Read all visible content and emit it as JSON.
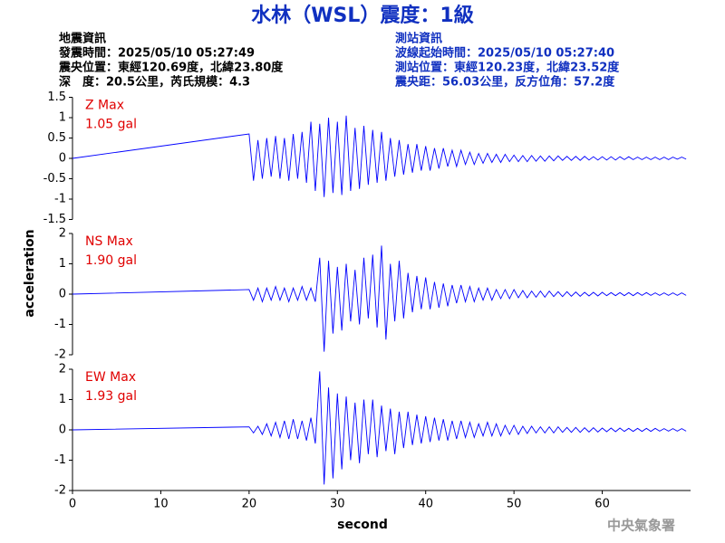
{
  "header": {
    "title": "水林（WSL）震度：1級",
    "earthquake_info": [
      "地震資訊",
      "發震時間：2025/05/10 05:27:49",
      "震央位置：東經120.69度，北緯23.80度",
      "深　度：20.5公里，芮氏規模：4.3"
    ],
    "station_info": [
      "測站資訊",
      "波線起始時間：2025/05/10 05:27:40",
      "測站位置：東經120.23度，北緯23.52度",
      "震央距：56.03公里，反方位角：57.2度"
    ]
  },
  "footer": {
    "watermark": "中央氣象署"
  },
  "chart_data": [
    {
      "type": "line",
      "annotations": [
        "Z Max",
        "1.05 gal"
      ],
      "color": "#0000ff",
      "xlim": [
        0,
        70
      ],
      "ylim": [
        -1.5,
        1.5
      ],
      "yticks": [
        -1.5,
        -1,
        -0.5,
        0,
        0.5,
        1,
        1.5
      ],
      "x": [
        0,
        20,
        20.5,
        21,
        21.5,
        22,
        22.5,
        23,
        23.5,
        24,
        24.5,
        25,
        25.5,
        26,
        26.5,
        27,
        27.5,
        28,
        28.5,
        29,
        29.5,
        30,
        30.5,
        31,
        31.5,
        32,
        32.5,
        33,
        33.5,
        34,
        34.5,
        35,
        35.5,
        36,
        36.5,
        37,
        37.5,
        38,
        38.5,
        39,
        39.5,
        40,
        40.5,
        41,
        41.5,
        42,
        42.5,
        43,
        43.5,
        44,
        44.5,
        45,
        45.5,
        46,
        46.5,
        47,
        47.5,
        48,
        48.5,
        49,
        49.5,
        50,
        50.5,
        51,
        51.5,
        52,
        52.5,
        53,
        53.5,
        54,
        54.5,
        55,
        55.5,
        56,
        56.5,
        57,
        57.5,
        58,
        58.5,
        59,
        59.5,
        60,
        60.5,
        61,
        61.5,
        62,
        62.5,
        63,
        63.5,
        64,
        64.5,
        65,
        65.5,
        66,
        66.5,
        67,
        67.5,
        68,
        68.5,
        69,
        69.5
      ],
      "values": [
        0,
        0.6,
        -0.55,
        0.45,
        -0.5,
        0.5,
        -0.45,
        0.55,
        -0.5,
        0.5,
        -0.55,
        0.6,
        -0.5,
        0.65,
        -0.6,
        0.9,
        -0.8,
        0.85,
        -0.95,
        1.0,
        -0.85,
        0.9,
        -0.9,
        1.05,
        -0.8,
        0.75,
        -0.75,
        0.8,
        -0.65,
        0.7,
        -0.6,
        0.65,
        -0.55,
        0.5,
        -0.45,
        0.45,
        -0.4,
        0.35,
        -0.35,
        0.35,
        -0.3,
        0.3,
        -0.3,
        0.25,
        -0.25,
        0.25,
        -0.2,
        0.2,
        -0.2,
        0.2,
        -0.15,
        0.15,
        -0.15,
        0.12,
        -0.12,
        0.12,
        -0.1,
        0.1,
        -0.1,
        0.1,
        -0.08,
        0.08,
        -0.08,
        0.07,
        -0.08,
        0.07,
        -0.07,
        0.06,
        -0.07,
        0.06,
        -0.06,
        0.06,
        -0.05,
        0.05,
        -0.05,
        0.05,
        -0.05,
        0.05,
        -0.04,
        0.04,
        -0.04,
        0.04,
        -0.04,
        0.04,
        -0.04,
        0.04,
        -0.03,
        0.04,
        -0.03,
        0.03,
        -0.03,
        0.03,
        -0.03,
        0.03,
        -0.03,
        0.03,
        -0.03,
        0.03,
        -0.02,
        0.03,
        -0.02
      ]
    },
    {
      "type": "line",
      "annotations": [
        "NS Max",
        "1.90 gal"
      ],
      "color": "#0000ff",
      "ylabel": "acceleration",
      "xlim": [
        0,
        70
      ],
      "ylim": [
        -2,
        2
      ],
      "yticks": [
        -2,
        -1,
        0,
        1,
        2
      ],
      "x": [
        0,
        20,
        20.5,
        21,
        21.5,
        22,
        22.5,
        23,
        23.5,
        24,
        24.5,
        25,
        25.5,
        26,
        26.5,
        27,
        27.5,
        28,
        28.5,
        29,
        29.5,
        30,
        30.5,
        31,
        31.5,
        32,
        32.5,
        33,
        33.5,
        34,
        34.5,
        35,
        35.5,
        36,
        36.5,
        37,
        37.5,
        38,
        38.5,
        39,
        39.5,
        40,
        40.5,
        41,
        41.5,
        42,
        42.5,
        43,
        43.5,
        44,
        44.5,
        45,
        45.5,
        46,
        46.5,
        47,
        47.5,
        48,
        48.5,
        49,
        49.5,
        50,
        50.5,
        51,
        51.5,
        52,
        52.5,
        53,
        53.5,
        54,
        54.5,
        55,
        55.5,
        56,
        56.5,
        57,
        57.5,
        58,
        58.5,
        59,
        59.5,
        60,
        60.5,
        61,
        61.5,
        62,
        62.5,
        63,
        63.5,
        64,
        64.5,
        65,
        65.5,
        66,
        66.5,
        67,
        67.5,
        68,
        68.5,
        69,
        69.5
      ],
      "values": [
        0,
        0.15,
        -0.2,
        0.2,
        -0.25,
        0.2,
        -0.2,
        0.25,
        -0.2,
        0.2,
        -0.25,
        0.2,
        -0.2,
        0.25,
        -0.2,
        0.2,
        -0.25,
        1.2,
        -1.9,
        1.1,
        -1.3,
        0.9,
        -1.2,
        1.0,
        -0.9,
        0.8,
        -1.0,
        1.2,
        -0.8,
        1.3,
        -1.1,
        1.6,
        -1.5,
        1.0,
        -0.9,
        1.1,
        -0.8,
        0.7,
        -0.6,
        0.6,
        -0.5,
        0.55,
        -0.5,
        0.4,
        -0.45,
        0.35,
        -0.4,
        0.3,
        -0.3,
        0.3,
        -0.25,
        0.25,
        -0.25,
        0.2,
        -0.2,
        0.2,
        -0.2,
        0.15,
        -0.15,
        0.15,
        -0.15,
        0.15,
        -0.12,
        0.12,
        -0.12,
        0.1,
        -0.1,
        0.1,
        -0.1,
        0.1,
        -0.08,
        0.08,
        -0.08,
        0.08,
        -0.07,
        0.07,
        -0.07,
        0.06,
        -0.06,
        0.06,
        -0.06,
        0.06,
        -0.05,
        0.05,
        -0.05,
        0.05,
        -0.05,
        0.05,
        -0.05,
        0.05,
        -0.04,
        0.05,
        -0.04,
        0.04,
        -0.04,
        0.04,
        -0.04,
        0.04,
        -0.04,
        0.04,
        -0.04
      ]
    },
    {
      "type": "line",
      "annotations": [
        "EW Max",
        "1.93 gal"
      ],
      "color": "#0000ff",
      "xlabel": "second",
      "xlim": [
        0,
        70
      ],
      "xticks": [
        0,
        10,
        20,
        30,
        40,
        50,
        60
      ],
      "ylim": [
        -2,
        2
      ],
      "yticks": [
        -2,
        -1,
        0,
        1,
        2
      ],
      "x": [
        0,
        20,
        20.5,
        21,
        21.5,
        22,
        22.5,
        23,
        23.5,
        24,
        24.5,
        25,
        25.5,
        26,
        26.5,
        27,
        27.5,
        28,
        28.5,
        29,
        29.5,
        30,
        30.5,
        31,
        31.5,
        32,
        32.5,
        33,
        33.5,
        34,
        34.5,
        35,
        35.5,
        36,
        36.5,
        37,
        37.5,
        38,
        38.5,
        39,
        39.5,
        40,
        40.5,
        41,
        41.5,
        42,
        42.5,
        43,
        43.5,
        44,
        44.5,
        45,
        45.5,
        46,
        46.5,
        47,
        47.5,
        48,
        48.5,
        49,
        49.5,
        50,
        50.5,
        51,
        51.5,
        52,
        52.5,
        53,
        53.5,
        54,
        54.5,
        55,
        55.5,
        56,
        56.5,
        57,
        57.5,
        58,
        58.5,
        59,
        59.5,
        60,
        60.5,
        61,
        61.5,
        62,
        62.5,
        63,
        63.5,
        64,
        64.5,
        65,
        65.5,
        66,
        66.5,
        67,
        67.5,
        68,
        68.5,
        69,
        69.5
      ],
      "values": [
        0,
        0.1,
        -0.1,
        0.12,
        -0.15,
        0.2,
        -0.2,
        0.25,
        -0.25,
        0.3,
        -0.3,
        0.35,
        -0.3,
        0.3,
        -0.35,
        0.4,
        -0.45,
        1.93,
        -1.8,
        1.4,
        -1.6,
        1.2,
        -1.3,
        1.1,
        -1.0,
        0.9,
        -1.1,
        1.0,
        -0.8,
        1.0,
        -0.9,
        0.8,
        -0.7,
        0.7,
        -0.8,
        0.6,
        -0.6,
        0.6,
        -0.5,
        0.5,
        -0.45,
        0.45,
        -0.4,
        0.4,
        -0.35,
        0.35,
        -0.35,
        0.3,
        -0.3,
        0.3,
        -0.25,
        0.25,
        -0.25,
        0.2,
        -0.2,
        0.25,
        -0.2,
        0.2,
        -0.2,
        0.15,
        -0.15,
        0.15,
        -0.15,
        0.12,
        -0.12,
        0.12,
        -0.1,
        0.1,
        -0.1,
        0.1,
        -0.1,
        0.1,
        -0.08,
        0.08,
        -0.08,
        0.08,
        -0.08,
        0.07,
        -0.07,
        0.07,
        -0.07,
        0.06,
        -0.06,
        0.06,
        -0.06,
        0.06,
        -0.05,
        0.05,
        -0.05,
        0.05,
        -0.05,
        0.05,
        -0.05,
        0.05,
        -0.04,
        0.04,
        -0.04,
        0.04,
        -0.04,
        0.04,
        -0.04
      ]
    }
  ]
}
